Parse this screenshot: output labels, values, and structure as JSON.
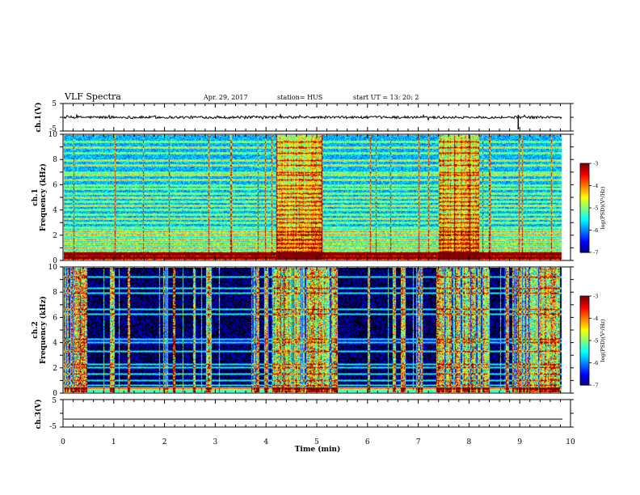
{
  "header": {
    "title": "VLF Spectra",
    "date": "Apr. 29, 2017",
    "station": "station= HUS",
    "start": "start  UT =   13: 20: 2"
  },
  "chart_data": {
    "type": "heatmap",
    "xlabel": "Time (min)",
    "xlim": [
      0,
      10
    ],
    "x_ticks": [
      "0",
      "1",
      "2",
      "3",
      "4",
      "5",
      "6",
      "7",
      "8",
      "9",
      "10"
    ],
    "panels": [
      {
        "id": "ch1-waveform",
        "type": "line",
        "ylabel": "ch.1(V)",
        "ylim": [
          -5,
          5
        ],
        "y_ticks": [
          "5",
          "-5"
        ],
        "level": 0,
        "spike_at_min": 8.97
      },
      {
        "id": "ch1-spectrogram",
        "type": "heatmap",
        "ylabel": "ch.1\nFrequency (kHz)",
        "ylim": [
          0,
          10
        ],
        "y_ticks": [
          "0",
          "2",
          "4",
          "6",
          "8",
          "10"
        ],
        "colorbar": {
          "label": "log(PSD)(V²/Hz)",
          "range": [
            -7,
            -3
          ],
          "ticks": [
            "-3",
            "-4",
            "-5",
            "-6",
            "-7"
          ]
        },
        "noise_lines_khz": [
          0.2,
          0.45,
          0.65,
          1.0,
          1.3,
          1.6,
          2.0,
          2.3,
          2.6,
          3.0,
          3.3,
          3.65,
          4.0,
          4.35,
          4.7,
          5.0,
          5.3,
          5.7,
          6.0,
          6.4,
          6.8,
          7.0,
          7.6,
          8.0,
          8.6,
          9.0,
          9.5
        ],
        "activity_min": [
          [
            4.2,
            5.1
          ],
          [
            7.4,
            8.2
          ]
        ],
        "base_level": -5.8
      },
      {
        "id": "ch2-spectrogram",
        "type": "heatmap",
        "ylabel": "ch.2\nFrequency (kHz)",
        "ylim": [
          0,
          10
        ],
        "y_ticks": [
          "0",
          "2",
          "4",
          "6",
          "8",
          "10"
        ],
        "colorbar": {
          "label": "log(PSD)(V²/Hz)",
          "range": [
            -7,
            -3
          ],
          "ticks": [
            "-3",
            "-4",
            "-5",
            "-6",
            "-7"
          ]
        },
        "noise_lines_khz": [
          0.3,
          0.6,
          1.0,
          1.5,
          2.0,
          2.3,
          3.3,
          4.0,
          4.3,
          6.3,
          6.7,
          8.0,
          8.4,
          9.3
        ],
        "burst_bands_min": [
          [
            0.0,
            0.45
          ],
          [
            0.9,
            1.0
          ],
          [
            1.25,
            1.3
          ],
          [
            1.95,
            2.05
          ],
          [
            2.15,
            2.2
          ],
          [
            2.55,
            2.6
          ],
          [
            2.8,
            2.9
          ],
          [
            3.7,
            3.85
          ],
          [
            3.95,
            4.05
          ],
          [
            4.1,
            5.4
          ],
          [
            6.0,
            6.05
          ],
          [
            6.5,
            6.55
          ],
          [
            6.65,
            6.75
          ],
          [
            6.95,
            7.1
          ],
          [
            7.35,
            8.4
          ],
          [
            8.7,
            8.8
          ],
          [
            8.85,
            9.8
          ]
        ],
        "base_level": -7.0
      },
      {
        "id": "ch3-waveform",
        "type": "line",
        "ylabel": "ch.3(V)",
        "ylim": [
          -5,
          5
        ],
        "y_ticks": [
          "5",
          "-5"
        ],
        "level": -2.1
      }
    ]
  }
}
